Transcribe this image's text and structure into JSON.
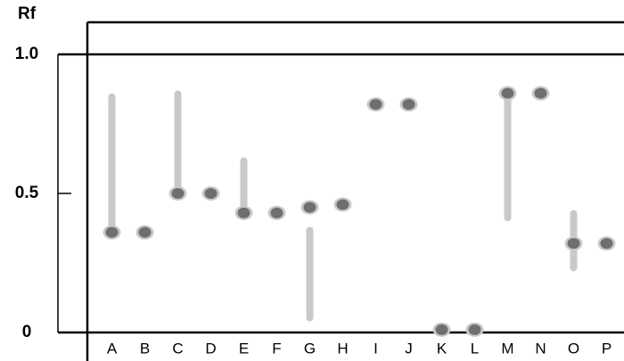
{
  "chart_data": {
    "type": "tlc",
    "ylabel": "Rf",
    "ylim": [
      0,
      1
    ],
    "yticks": [
      0,
      0.5,
      {
        "value": 1,
        "label": "1.0"
      }
    ],
    "categories": [
      "A",
      "B",
      "C",
      "D",
      "E",
      "F",
      "G",
      "H",
      "I",
      "J",
      "K",
      "L",
      "M",
      "N",
      "O",
      "P"
    ],
    "values": [
      0.36,
      0.36,
      0.5,
      0.5,
      0.43,
      0.43,
      0.45,
      0.46,
      0.82,
      0.82,
      0.01,
      0.01,
      0.86,
      0.86,
      0.32,
      0.32
    ],
    "streak_low": [
      0.34,
      null,
      0.5,
      null,
      0.43,
      null,
      0.04,
      null,
      null,
      null,
      null,
      null,
      0.4,
      null,
      0.22,
      null
    ],
    "streak_high": [
      0.86,
      null,
      0.87,
      null,
      0.63,
      null,
      0.38,
      null,
      null,
      null,
      null,
      null,
      0.86,
      null,
      0.44,
      null
    ],
    "spot_color": "#6f6f6f",
    "streak_color": "#c9c9c9"
  }
}
